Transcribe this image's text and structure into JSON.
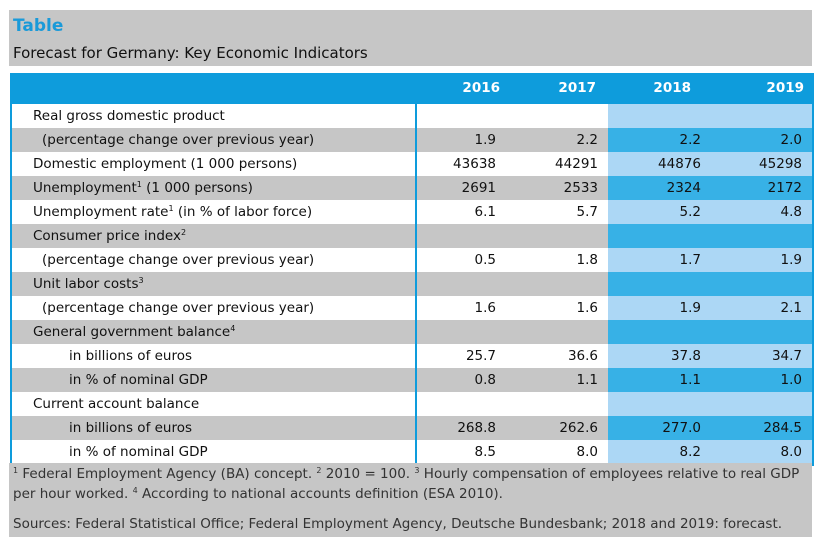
{
  "header": {
    "label": "Table",
    "title": "Forecast for Germany: Key Economic Indicators"
  },
  "table": {
    "columns": [
      "2016",
      "2017",
      "2018",
      "2019"
    ],
    "forecast_columns": [
      "2018",
      "2019"
    ],
    "rows": [
      {
        "label": "Real gross domestic product",
        "sup": "",
        "rest": "",
        "values": [
          "",
          "",
          "",
          ""
        ]
      },
      {
        "label": "(percentage change over previous year)",
        "sup": "",
        "rest": "",
        "values": [
          "1.9",
          "2.2",
          "2.2",
          "2.0"
        ]
      },
      {
        "label": "Domestic employment (1 000 persons)",
        "sup": "",
        "rest": "",
        "values": [
          "43638",
          "44291",
          "44876",
          "45298"
        ]
      },
      {
        "label": "Unemployment",
        "sup": "1",
        "rest": " (1 000 persons)",
        "values": [
          "2691",
          "2533",
          "2324",
          "2172"
        ]
      },
      {
        "label": "Unemployment rate",
        "sup": "1",
        "rest": " (in % of labor force)",
        "values": [
          "6.1",
          "5.7",
          "5.2",
          "4.8"
        ]
      },
      {
        "label": "Consumer price index",
        "sup": "2",
        "rest": "",
        "values": [
          "",
          "",
          "",
          ""
        ]
      },
      {
        "label": "(percentage change over previous year)",
        "sup": "",
        "rest": "",
        "values": [
          "0.5",
          "1.8",
          "1.7",
          "1.9"
        ]
      },
      {
        "label": "Unit labor costs",
        "sup": "3",
        "rest": "",
        "values": [
          "",
          "",
          "",
          ""
        ]
      },
      {
        "label": "(percentage change over previous year)",
        "sup": "",
        "rest": "",
        "values": [
          "1.6",
          "1.6",
          "1.9",
          "2.1"
        ]
      },
      {
        "label": "General government balance",
        "sup": "4",
        "rest": "",
        "values": [
          "",
          "",
          "",
          ""
        ]
      },
      {
        "label": "in billions of euros",
        "sup": "",
        "rest": "",
        "values": [
          "25.7",
          "36.6",
          "37.8",
          "34.7"
        ]
      },
      {
        "label": "in % of nominal GDP",
        "sup": "",
        "rest": "",
        "values": [
          "0.8",
          "1.1",
          "1.1",
          "1.0"
        ]
      },
      {
        "label": "Current account balance",
        "sup": "",
        "rest": "",
        "values": [
          "",
          "",
          "",
          ""
        ]
      },
      {
        "label": "in billions of euros",
        "sup": "",
        "rest": "",
        "values": [
          "268.8",
          "262.6",
          "277.0",
          "284.5"
        ]
      },
      {
        "label": "in % of nominal GDP",
        "sup": "",
        "rest": "",
        "values": [
          "8.5",
          "8.0",
          "8.2",
          "8.0"
        ]
      }
    ]
  },
  "footnotes": {
    "notes": [
      {
        "num": "1",
        "text": " Federal Employment Agency (BA) concept. "
      },
      {
        "num": "2",
        "text": " 2010 = 100. "
      },
      {
        "num": "3",
        "text": " Hourly compensation of employees relative to real GDP per hour worked. "
      },
      {
        "num": "4",
        "text": " According to national accounts definition (ESA 2010)."
      }
    ],
    "sources": "Sources: Federal Statistical Office; Federal Employment Agency, Deutsche Bundesbank; 2018 and 2019: forecast."
  },
  "colors": {
    "accent_blue": "#0e9cdc",
    "forecast_dark": "#37b1e6",
    "forecast_light": "#acd7f5",
    "stripe_gray": "#c6c6c6"
  }
}
